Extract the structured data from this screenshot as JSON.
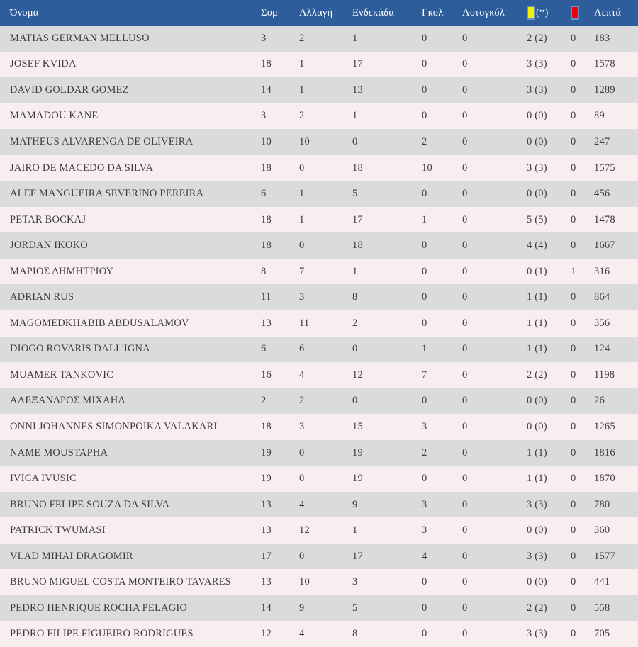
{
  "table": {
    "columns": {
      "name": "Όνομα",
      "appearances": "Συμ",
      "substitution": "Αλλαγή",
      "starting_eleven": "Ενδεκάδα",
      "goals": "Γκολ",
      "own_goals": "Αυτογκόλ",
      "yellow_cards_note": "(*)",
      "minutes": "Λεπτά"
    },
    "icons": {
      "yellow_card": "yellow-card-icon",
      "red_card": "red-card-icon"
    },
    "colors": {
      "header_bg": "#2e5d9b",
      "header_text": "#ffffff",
      "row_gray": "#dbdbdb",
      "row_pink": "#f8eef0",
      "yellow_card": "#f8ef00",
      "red_card": "#f2000a",
      "card_border": "#5e95cf",
      "body_text": "#3c3c3c"
    },
    "rows": [
      {
        "name": "MATIAS GERMAN MELLUSO",
        "sym": "3",
        "allagi": "2",
        "endekada": "1",
        "gkol": "0",
        "aytogkol": "0",
        "yellow": "2 (2)",
        "red": "0",
        "lepta": "183"
      },
      {
        "name": "JOSEF KVIDA",
        "sym": "18",
        "allagi": "1",
        "endekada": "17",
        "gkol": "0",
        "aytogkol": "0",
        "yellow": "3 (3)",
        "red": "0",
        "lepta": "1578"
      },
      {
        "name": "DAVID GOLDAR GOMEZ",
        "sym": "14",
        "allagi": "1",
        "endekada": "13",
        "gkol": "0",
        "aytogkol": "0",
        "yellow": "3 (3)",
        "red": "0",
        "lepta": "1289"
      },
      {
        "name": "MAMADOU KANE",
        "sym": "3",
        "allagi": "2",
        "endekada": "1",
        "gkol": "0",
        "aytogkol": "0",
        "yellow": "0 (0)",
        "red": "0",
        "lepta": "89"
      },
      {
        "name": "MATHEUS ALVARENGA DE OLIVEIRA",
        "sym": "10",
        "allagi": "10",
        "endekada": "0",
        "gkol": "2",
        "aytogkol": "0",
        "yellow": "0 (0)",
        "red": "0",
        "lepta": "247"
      },
      {
        "name": "JAIRO DE MACEDO DA SILVA",
        "sym": "18",
        "allagi": "0",
        "endekada": "18",
        "gkol": "10",
        "aytogkol": "0",
        "yellow": "3 (3)",
        "red": "0",
        "lepta": "1575"
      },
      {
        "name": "ALEF MANGUEIRA SEVERINO PEREIRA",
        "sym": "6",
        "allagi": "1",
        "endekada": "5",
        "gkol": "0",
        "aytogkol": "0",
        "yellow": "0 (0)",
        "red": "0",
        "lepta": "456"
      },
      {
        "name": "PETAR BOCKAJ",
        "sym": "18",
        "allagi": "1",
        "endekada": "17",
        "gkol": "1",
        "aytogkol": "0",
        "yellow": "5 (5)",
        "red": "0",
        "lepta": "1478"
      },
      {
        "name": "JORDAN IKOKO",
        "sym": "18",
        "allagi": "0",
        "endekada": "18",
        "gkol": "0",
        "aytogkol": "0",
        "yellow": "4 (4)",
        "red": "0",
        "lepta": "1667"
      },
      {
        "name": "ΜΑΡΙΟΣ ΔΗΜΗΤΡΙΟΥ",
        "sym": "8",
        "allagi": "7",
        "endekada": "1",
        "gkol": "0",
        "aytogkol": "0",
        "yellow": "0 (1)",
        "red": "1",
        "lepta": "316"
      },
      {
        "name": "ADRIAN RUS",
        "sym": "11",
        "allagi": "3",
        "endekada": "8",
        "gkol": "0",
        "aytogkol": "0",
        "yellow": "1 (1)",
        "red": "0",
        "lepta": "864"
      },
      {
        "name": "MAGOMEDKHABIB ABDUSALAMOV",
        "sym": "13",
        "allagi": "11",
        "endekada": "2",
        "gkol": "0",
        "aytogkol": "0",
        "yellow": "1 (1)",
        "red": "0",
        "lepta": "356"
      },
      {
        "name": "DIOGO ROVARIS DALL'IGNA",
        "sym": "6",
        "allagi": "6",
        "endekada": "0",
        "gkol": "1",
        "aytogkol": "0",
        "yellow": "1 (1)",
        "red": "0",
        "lepta": "124"
      },
      {
        "name": "MUAMER TANKOVIC",
        "sym": "16",
        "allagi": "4",
        "endekada": "12",
        "gkol": "7",
        "aytogkol": "0",
        "yellow": "2 (2)",
        "red": "0",
        "lepta": "1198"
      },
      {
        "name": "ΑΛΕΞΑΝΔΡΟΣ ΜΙΧΑΗΛ",
        "sym": "2",
        "allagi": "2",
        "endekada": "0",
        "gkol": "0",
        "aytogkol": "0",
        "yellow": "0 (0)",
        "red": "0",
        "lepta": "26"
      },
      {
        "name": "ONNI JOHANNES SIMONPOIKA VALAKARI",
        "sym": "18",
        "allagi": "3",
        "endekada": "15",
        "gkol": "3",
        "aytogkol": "0",
        "yellow": "0 (0)",
        "red": "0",
        "lepta": "1265"
      },
      {
        "name": "NAME MOUSTAPHA",
        "sym": "19",
        "allagi": "0",
        "endekada": "19",
        "gkol": "2",
        "aytogkol": "0",
        "yellow": "1 (1)",
        "red": "0",
        "lepta": "1816"
      },
      {
        "name": "IVICA IVUSIC",
        "sym": "19",
        "allagi": "0",
        "endekada": "19",
        "gkol": "0",
        "aytogkol": "0",
        "yellow": "1 (1)",
        "red": "0",
        "lepta": "1870"
      },
      {
        "name": "BRUNO FELIPE SOUZA DA SILVA",
        "sym": "13",
        "allagi": "4",
        "endekada": "9",
        "gkol": "3",
        "aytogkol": "0",
        "yellow": "3 (3)",
        "red": "0",
        "lepta": "780"
      },
      {
        "name": "PATRICK TWUMASI",
        "sym": "13",
        "allagi": "12",
        "endekada": "1",
        "gkol": "3",
        "aytogkol": "0",
        "yellow": "0 (0)",
        "red": "0",
        "lepta": "360"
      },
      {
        "name": "VLAD MIHAI DRAGOMIR",
        "sym": "17",
        "allagi": "0",
        "endekada": "17",
        "gkol": "4",
        "aytogkol": "0",
        "yellow": "3 (3)",
        "red": "0",
        "lepta": "1577"
      },
      {
        "name": "BRUNO MIGUEL COSTA MONTEIRO TAVARES",
        "sym": "13",
        "allagi": "10",
        "endekada": "3",
        "gkol": "0",
        "aytogkol": "0",
        "yellow": "0 (0)",
        "red": "0",
        "lepta": "441"
      },
      {
        "name": "PEDRO HENRIQUE ROCHA PELAGIO",
        "sym": "14",
        "allagi": "9",
        "endekada": "5",
        "gkol": "0",
        "aytogkol": "0",
        "yellow": "2 (2)",
        "red": "0",
        "lepta": "558"
      },
      {
        "name": "PEDRO FILIPE FIGUEIRO RODRIGUES",
        "sym": "12",
        "allagi": "4",
        "endekada": "8",
        "gkol": "0",
        "aytogkol": "0",
        "yellow": "3 (3)",
        "red": "0",
        "lepta": "705"
      }
    ]
  }
}
